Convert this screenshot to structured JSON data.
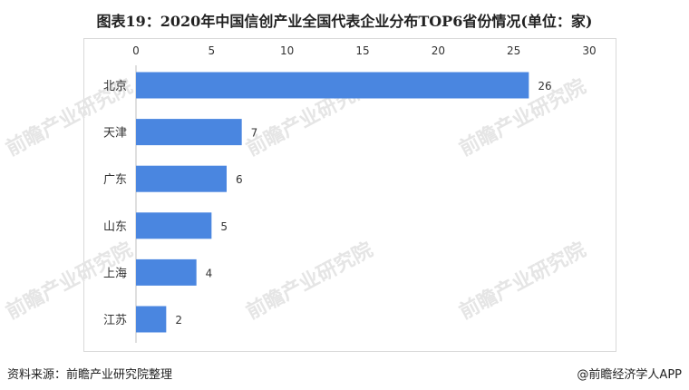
{
  "title": "图表19：2020年中国信创产业全国代表企业分布TOP6省份情况(单位：家)",
  "source": "资料来源：前瞻产业研究院整理",
  "brand": "@前瞻经济学人APP",
  "watermark": "前瞻产业研究院",
  "colors": {
    "bar": "#4a86e0",
    "grid": "#d9d9d9",
    "text": "#333333"
  },
  "chart_data": {
    "type": "bar",
    "orientation": "horizontal",
    "categories": [
      "北京",
      "天津",
      "广东",
      "山东",
      "上海",
      "江苏"
    ],
    "values": [
      26,
      7,
      6,
      5,
      4,
      2
    ],
    "xlim": [
      0,
      30
    ],
    "xticks": [
      0,
      5,
      10,
      15,
      20,
      25,
      30
    ],
    "axis_position": "top",
    "grid": false,
    "title": "图表19：2020年中国信创产业全国代表企业分布TOP6省份情况(单位：家)"
  }
}
